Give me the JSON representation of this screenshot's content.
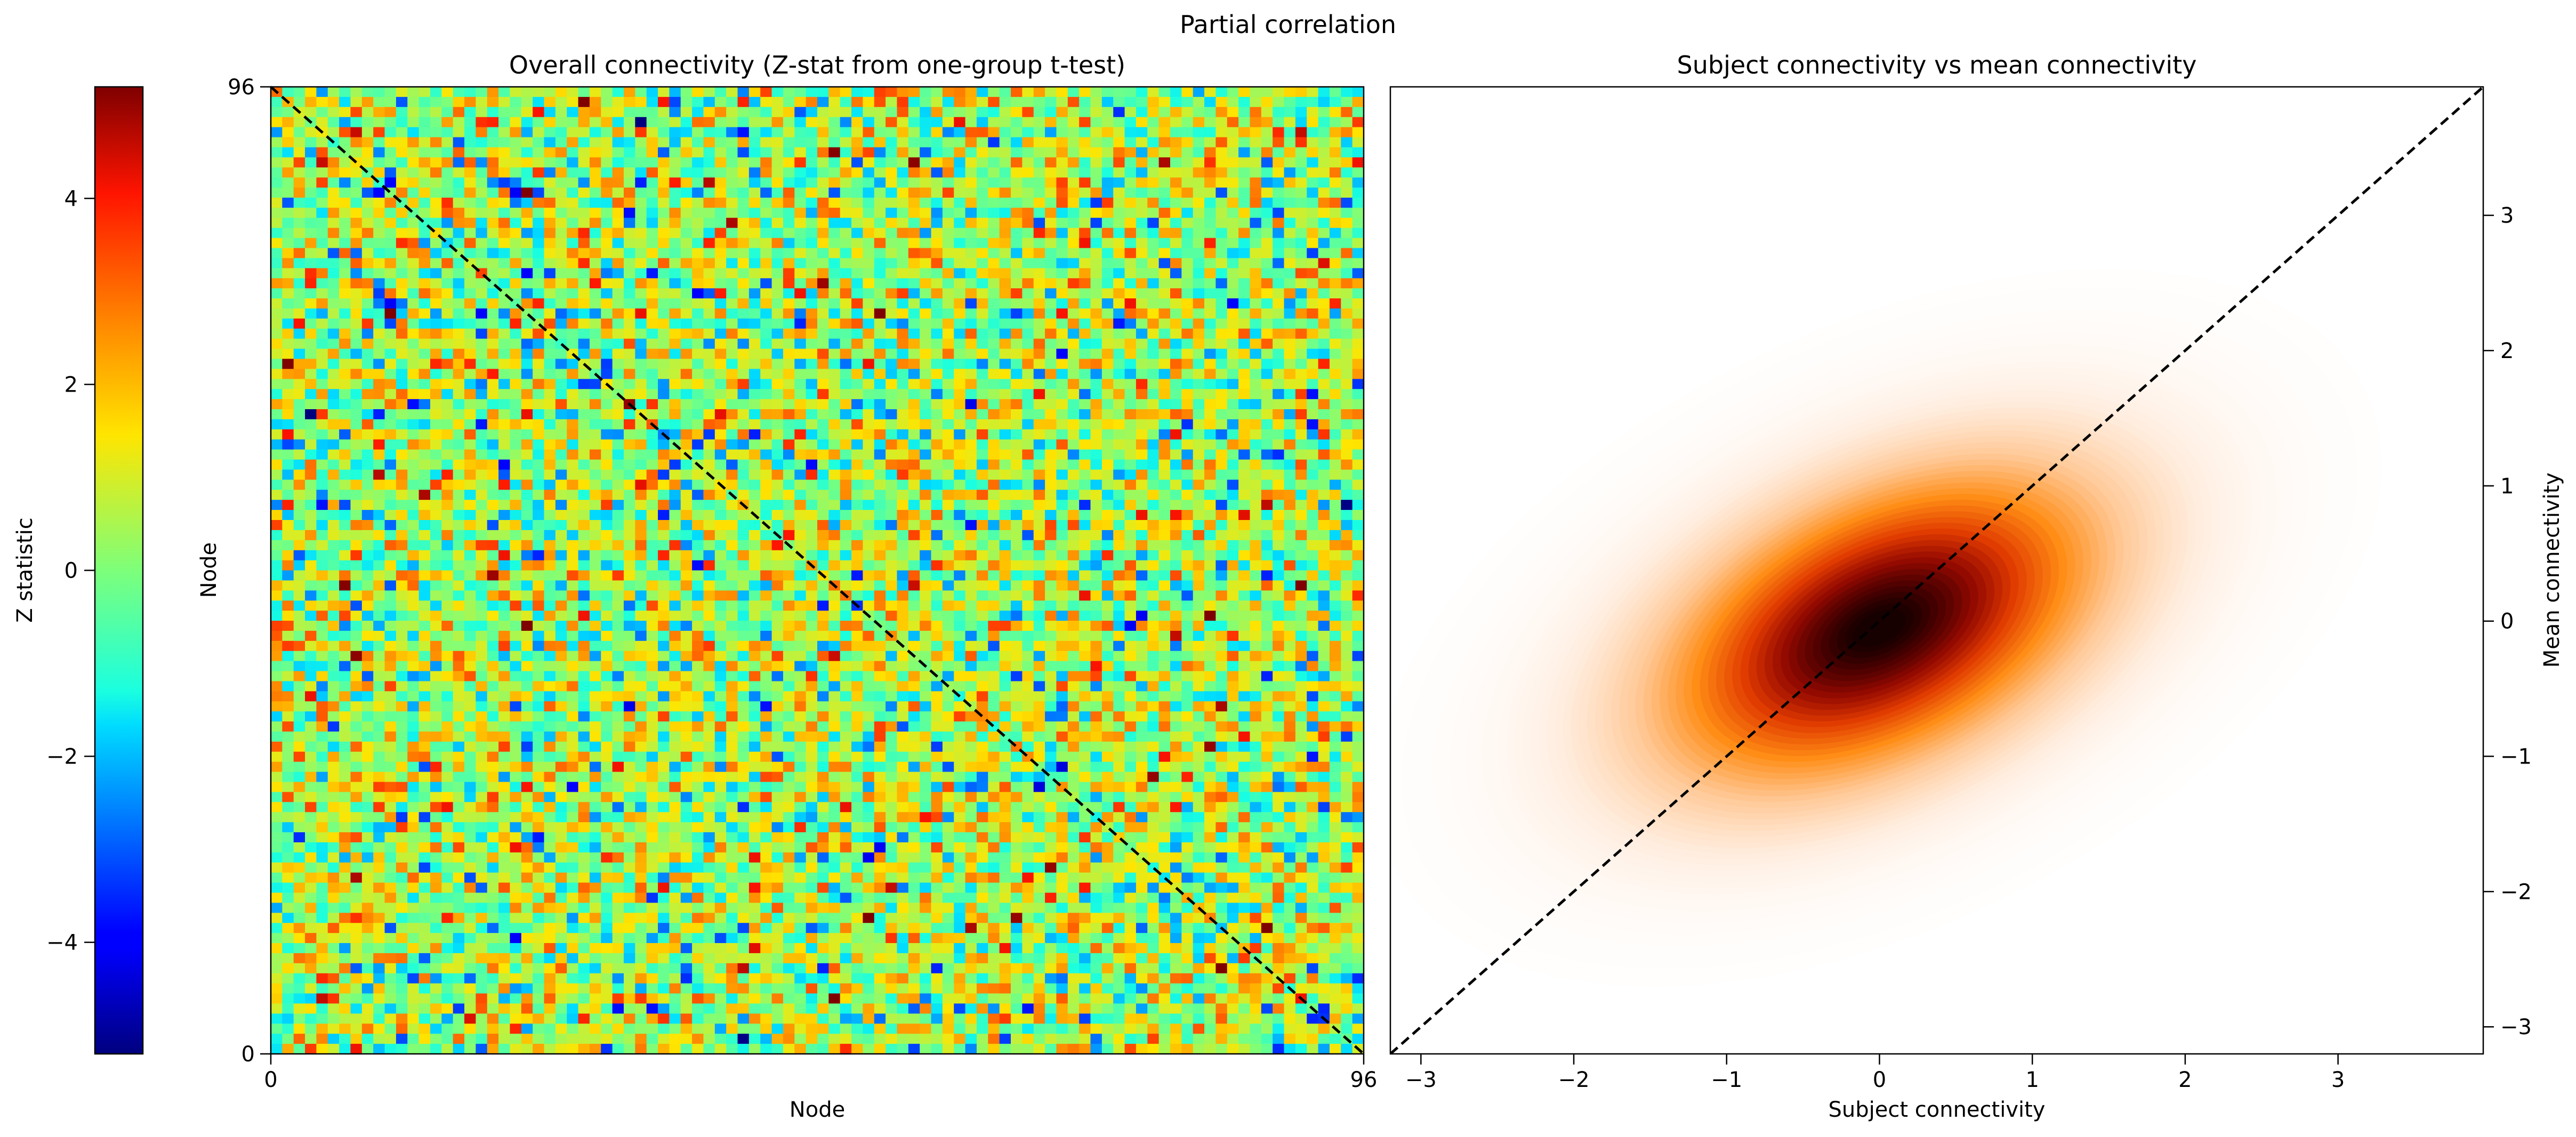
{
  "figure": {
    "suptitle": "Partial correlation"
  },
  "chart_data": [
    {
      "type": "colorbar",
      "label": "Z statistic",
      "colormap": "jet",
      "range": [
        -5.2,
        5.2
      ],
      "ticks": [
        -4,
        -2,
        0,
        2,
        4
      ],
      "tick_labels": [
        "−4",
        "−2",
        "0",
        "2",
        "4"
      ]
    },
    {
      "type": "heatmap",
      "title": "Overall connectivity (Z-stat from one-group t-test)",
      "xlabel": "Node",
      "ylabel": "Node",
      "n_nodes": 96,
      "xlim": [
        0,
        96
      ],
      "ylim": [
        0,
        96
      ],
      "x_ticks": [
        0,
        96
      ],
      "x_tick_labels": [
        "0",
        "96"
      ],
      "y_ticks": [
        0,
        96
      ],
      "y_tick_labels": [
        "0",
        "96"
      ],
      "colormap": "jet",
      "value_range": [
        -5.2,
        5.2
      ],
      "reference_line": "diagonal, dashed black, from (0,96) to (96,0)"
    },
    {
      "type": "density",
      "title": "Subject connectivity vs mean connectivity",
      "xlabel": "Subject connectivity",
      "ylabel": "Mean connectivity",
      "xlim": [
        -3.2,
        3.95
      ],
      "ylim": [
        -3.2,
        3.95
      ],
      "x_ticks": [
        -3,
        -2,
        -1,
        0,
        1,
        2,
        3
      ],
      "x_tick_labels": [
        "−3",
        "−2",
        "−1",
        "0",
        "1",
        "2",
        "3"
      ],
      "y_ticks": [
        -3,
        -2,
        -1,
        0,
        1,
        2,
        3
      ],
      "y_tick_labels": [
        "−3",
        "−2",
        "−1",
        "0",
        "1",
        "2",
        "3"
      ],
      "y_axis_side": "right",
      "colormap": "gist_heat_r",
      "density_peak": [
        0.0,
        -0.05
      ],
      "density_spread": [
        1.05,
        0.75
      ],
      "density_correlation": 0.45,
      "reference_line": "identity y = x, dashed black"
    }
  ]
}
